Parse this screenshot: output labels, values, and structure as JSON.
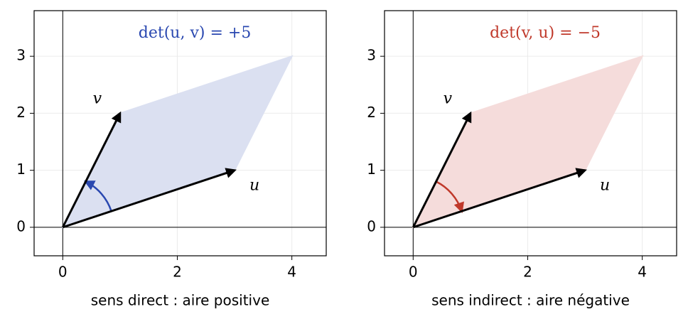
{
  "chart_data": [
    {
      "type": "vectors",
      "annotation": "det(u, v) = +5",
      "annotation_color": "#2a48b0",
      "xlabel": "sens direct : aire positive",
      "vectors": [
        {
          "name": "u",
          "x": 3,
          "y": 1
        },
        {
          "name": "v",
          "x": 1,
          "y": 2
        }
      ],
      "fill": "#dbe0f1",
      "arc_color": "#2a48b0",
      "arc": "counterclockwise",
      "xlim": [
        -0.5,
        4.6
      ],
      "ylim": [
        -0.5,
        3.8
      ],
      "xticks": [
        0,
        2,
        4
      ],
      "yticks": [
        0,
        1,
        2,
        3
      ],
      "grid": true
    },
    {
      "type": "vectors",
      "annotation": "det(v, u) = −5",
      "annotation_color": "#c0392b",
      "xlabel": "sens indirect : aire négative",
      "vectors": [
        {
          "name": "u",
          "x": 3,
          "y": 1
        },
        {
          "name": "v",
          "x": 1,
          "y": 2
        }
      ],
      "fill": "#f5dcdb",
      "arc_color": "#c0392b",
      "arc": "clockwise",
      "xlim": [
        -0.5,
        4.6
      ],
      "ylim": [
        -0.5,
        3.8
      ],
      "xticks": [
        0,
        2,
        4
      ],
      "yticks": [
        0,
        1,
        2,
        3
      ],
      "grid": true
    }
  ]
}
